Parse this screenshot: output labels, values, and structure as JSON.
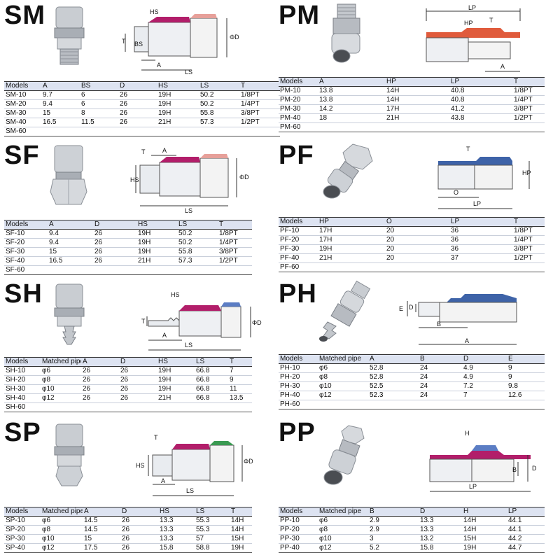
{
  "header_label": "Models",
  "panels": {
    "sm": {
      "title": "SM",
      "diagram_labels": {
        "hs": "HS",
        "t": "T",
        "bs": "BS",
        "a": "A",
        "ls": "LS",
        "d": "ΦD"
      },
      "columns": [
        "Models",
        "A",
        "BS",
        "D",
        "HS",
        "LS",
        "T"
      ],
      "rows": [
        [
          "SM-10",
          "9.7",
          "6",
          "26",
          "19H",
          "50.2",
          "1/8PT"
        ],
        [
          "SM-20",
          "9.4",
          "6",
          "26",
          "19H",
          "50.2",
          "1/4PT"
        ],
        [
          "SM-30",
          "15",
          "8",
          "26",
          "19H",
          "55.8",
          "3/8PT"
        ],
        [
          "SM-40",
          "16.5",
          "11.5",
          "26",
          "21H",
          "57.3",
          "1/2PT"
        ],
        [
          "SM-60",
          "",
          "",
          "",
          "",
          "",
          ""
        ]
      ]
    },
    "pm": {
      "title": "PM",
      "diagram_labels": {
        "lp": "LP",
        "hp": "HP",
        "t": "T",
        "a": "A"
      },
      "columns": [
        "Models",
        "A",
        "HP",
        "LP",
        "T"
      ],
      "rows": [
        [
          "PM-10",
          "13.8",
          "14H",
          "40.8",
          "1/8PT"
        ],
        [
          "PM-20",
          "13.8",
          "14H",
          "40.8",
          "1/4PT"
        ],
        [
          "PM-30",
          "14.2",
          "17H",
          "41.2",
          "3/8PT"
        ],
        [
          "PM-40",
          "18",
          "21H",
          "43.8",
          "1/2PT"
        ],
        [
          "PM-60",
          "",
          "",
          "",
          ""
        ]
      ]
    },
    "sf": {
      "title": "SF",
      "diagram_labels": {
        "t": "T",
        "a": "A",
        "hs": "HS",
        "ls": "LS",
        "d": "ΦD"
      },
      "columns": [
        "Models",
        "A",
        "D",
        "HS",
        "LS",
        "T"
      ],
      "rows": [
        [
          "SF-10",
          "9.4",
          "26",
          "19H",
          "50.2",
          "1/8PT"
        ],
        [
          "SF-20",
          "9.4",
          "26",
          "19H",
          "50.2",
          "1/4PT"
        ],
        [
          "SF-30",
          "15",
          "26",
          "19H",
          "55.8",
          "3/8PT"
        ],
        [
          "SF-40",
          "16.5",
          "26",
          "21H",
          "57.3",
          "1/2PT"
        ],
        [
          "SF-60",
          "",
          "",
          "",
          "",
          ""
        ]
      ]
    },
    "pf": {
      "title": "PF",
      "diagram_labels": {
        "t": "T",
        "hp": "HP",
        "o": "O",
        "lp": "LP"
      },
      "columns": [
        "Models",
        "HP",
        "O",
        "LP",
        "T"
      ],
      "rows": [
        [
          "PF-10",
          "17H",
          "20",
          "36",
          "1/8PT"
        ],
        [
          "PF-20",
          "17H",
          "20",
          "36",
          "1/4PT"
        ],
        [
          "PF-30",
          "19H",
          "20",
          "36",
          "3/8PT"
        ],
        [
          "PF-40",
          "21H",
          "20",
          "37",
          "1/2PT"
        ],
        [
          "PF-60",
          "",
          "",
          "",
          ""
        ]
      ]
    },
    "sh": {
      "title": "SH",
      "diagram_labels": {
        "hs": "HS",
        "t": "T",
        "a": "A",
        "ls": "LS",
        "d": "ΦD"
      },
      "columns": [
        "Models",
        "Matched pipe",
        "A",
        "D",
        "HS",
        "LS",
        "T"
      ],
      "rows": [
        [
          "SH-10",
          "φ6",
          "26",
          "26",
          "19H",
          "66.8",
          "7"
        ],
        [
          "SH-20",
          "φ8",
          "26",
          "26",
          "19H",
          "66.8",
          "9"
        ],
        [
          "SH-30",
          "φ10",
          "26",
          "26",
          "19H",
          "66.8",
          "11"
        ],
        [
          "SH-40",
          "φ12",
          "26",
          "26",
          "21H",
          "66.8",
          "13.5"
        ],
        [
          "SH-60",
          "",
          "",
          "",
          "",
          "",
          ""
        ]
      ]
    },
    "ph": {
      "title": "PH",
      "diagram_labels": {
        "e": "E",
        "d": "D",
        "b": "B",
        "a": "A"
      },
      "columns": [
        "Models",
        "Matched pipe",
        "A",
        "B",
        "D",
        "E"
      ],
      "rows": [
        [
          "PH-10",
          "φ6",
          "52.8",
          "24",
          "4.9",
          "9"
        ],
        [
          "PH-20",
          "φ8",
          "52.8",
          "24",
          "4.9",
          "9"
        ],
        [
          "PH-30",
          "φ10",
          "52.5",
          "24",
          "7.2",
          "9.8"
        ],
        [
          "PH-40",
          "φ12",
          "52.3",
          "24",
          "7",
          "12.6"
        ],
        [
          "PH-60",
          "",
          "",
          "",
          "",
          ""
        ]
      ]
    },
    "sp": {
      "title": "SP",
      "diagram_labels": {
        "t": "T",
        "hs": "HS",
        "a": "A",
        "ls": "LS",
        "d": "ΦD"
      },
      "columns": [
        "Models",
        "Matched pipe",
        "A",
        "D",
        "HS",
        "LS",
        "T"
      ],
      "rows": [
        [
          "SP-10",
          "φ6",
          "14.5",
          "26",
          "13.3",
          "55.3",
          "14H"
        ],
        [
          "SP-20",
          "φ8",
          "14.5",
          "26",
          "13.3",
          "55.3",
          "14H"
        ],
        [
          "SP-30",
          "φ10",
          "15",
          "26",
          "13.3",
          "57",
          "15H"
        ],
        [
          "SP-40",
          "φ12",
          "17.5",
          "26",
          "15.8",
          "58.8",
          "19H"
        ]
      ]
    },
    "pp": {
      "title": "PP",
      "diagram_labels": {
        "h": "H",
        "b": "B",
        "d": "D",
        "lp": "LP"
      },
      "columns": [
        "Models",
        "Matched pipe",
        "B",
        "D",
        "H",
        "LP"
      ],
      "rows": [
        [
          "PP-10",
          "φ6",
          "2.9",
          "13.3",
          "14H",
          "44.1"
        ],
        [
          "PP-20",
          "φ8",
          "2.9",
          "13.3",
          "14H",
          "44.1"
        ],
        [
          "PP-30",
          "φ10",
          "3",
          "13.2",
          "15H",
          "44.2"
        ],
        [
          "PP-40",
          "φ12",
          "5.2",
          "15.8",
          "19H",
          "44.7"
        ]
      ]
    }
  }
}
